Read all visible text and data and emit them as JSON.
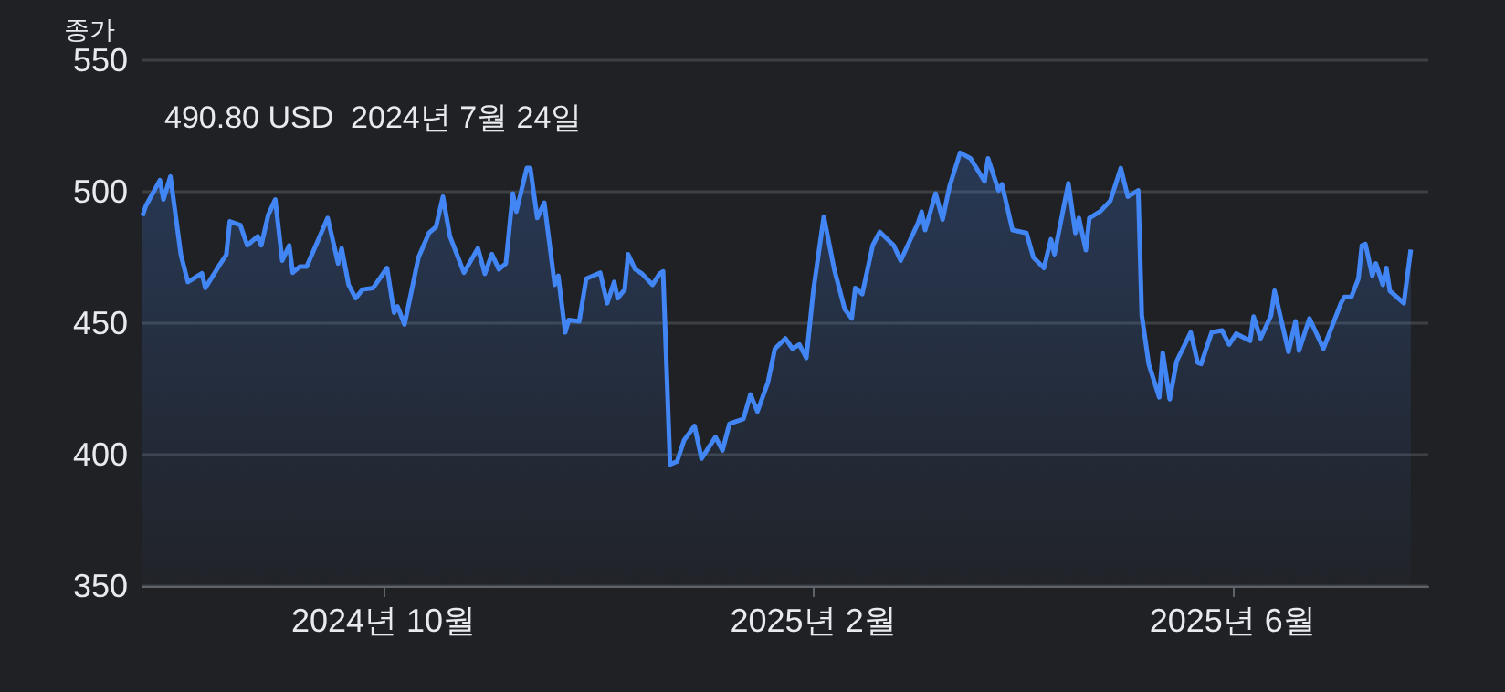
{
  "chart_data": {
    "type": "area",
    "title": "종가",
    "x": [
      "2024-07-24",
      "2024-07-25",
      "2024-07-29",
      "2024-07-30",
      "2024-08-01",
      "2024-08-04",
      "2024-08-06",
      "2024-08-10",
      "2024-08-11",
      "2024-08-15",
      "2024-08-17",
      "2024-08-18",
      "2024-08-21",
      "2024-08-23",
      "2024-08-26",
      "2024-08-27",
      "2024-08-29",
      "2024-08-31",
      "2024-09-02",
      "2024-09-04",
      "2024-09-05",
      "2024-09-07",
      "2024-09-09",
      "2024-09-15",
      "2024-09-18",
      "2024-09-19",
      "2024-09-21",
      "2024-09-23",
      "2024-09-25",
      "2024-09-28",
      "2024-10-02",
      "2024-10-04",
      "2024-10-05",
      "2024-10-07",
      "2024-10-11",
      "2024-10-14",
      "2024-10-16",
      "2024-10-18",
      "2024-10-20",
      "2024-10-24",
      "2024-10-28",
      "2024-10-30",
      "2024-11-01",
      "2024-11-03",
      "2024-11-05",
      "2024-11-07",
      "2024-11-08",
      "2024-11-11",
      "2024-11-12",
      "2024-11-14",
      "2024-11-16",
      "2024-11-19",
      "2024-11-20",
      "2024-11-22",
      "2024-11-23",
      "2024-11-26",
      "2024-11-28",
      "2024-12-02",
      "2024-12-04",
      "2024-12-06",
      "2024-12-07",
      "2024-12-09",
      "2024-12-10",
      "2024-12-12",
      "2024-12-14",
      "2024-12-17",
      "2024-12-19",
      "2024-12-20",
      "2024-12-22",
      "2024-12-24",
      "2024-12-26",
      "2024-12-29",
      "2024-12-31",
      "2025-01-04",
      "2025-01-06",
      "2025-01-08",
      "2025-01-12",
      "2025-01-14",
      "2025-01-16",
      "2025-01-19",
      "2025-01-21",
      "2025-01-24",
      "2025-01-26",
      "2025-01-28",
      "2025-01-30",
      "2025-02-01",
      "2025-02-04",
      "2025-02-07",
      "2025-02-10",
      "2025-02-12",
      "2025-02-13",
      "2025-02-15",
      "2025-02-18",
      "2025-02-20",
      "2025-02-24",
      "2025-02-26",
      "2025-03-03",
      "2025-03-04",
      "2025-03-05",
      "2025-03-08",
      "2025-03-10",
      "2025-03-12",
      "2025-03-15",
      "2025-03-18",
      "2025-03-22",
      "2025-03-23",
      "2025-03-26",
      "2025-03-27",
      "2025-03-30",
      "2025-04-03",
      "2025-04-05",
      "2025-04-08",
      "2025-04-10",
      "2025-04-11",
      "2025-04-15",
      "2025-04-17",
      "2025-04-18",
      "2025-04-20",
      "2025-04-21",
      "2025-04-24",
      "2025-04-27",
      "2025-04-30",
      "2025-05-02",
      "2025-05-05",
      "2025-05-06",
      "2025-05-08",
      "2025-05-11",
      "2025-05-12",
      "2025-05-14",
      "2025-05-16",
      "2025-05-20",
      "2025-05-22",
      "2025-05-23",
      "2025-05-26",
      "2025-05-29",
      "2025-05-31",
      "2025-06-02",
      "2025-06-06",
      "2025-06-07",
      "2025-06-09",
      "2025-06-12",
      "2025-06-13",
      "2025-06-17",
      "2025-06-19",
      "2025-06-20",
      "2025-06-23",
      "2025-06-27",
      "2025-07-02",
      "2025-07-03",
      "2025-07-05",
      "2025-07-07",
      "2025-07-08",
      "2025-07-09",
      "2025-07-11",
      "2025-07-12",
      "2025-07-14",
      "2025-07-15",
      "2025-07-16",
      "2025-07-20",
      "2025-07-22"
    ],
    "series": [
      {
        "color": "#4285f4",
        "values": [
          490.8,
          494.7,
          504.4,
          497,
          505.8,
          476,
          465.7,
          469,
          463.4,
          472,
          476,
          488.7,
          487.3,
          479.6,
          483,
          479.6,
          491.2,
          497,
          473.8,
          479.6,
          469.2,
          471.5,
          471.5,
          490,
          472.7,
          478.5,
          464.6,
          459.5,
          462.8,
          463.4,
          471,
          454,
          456.4,
          449.5,
          475,
          484.3,
          486.6,
          498.1,
          483,
          469.2,
          478.5,
          468.8,
          476.3,
          470.5,
          472.7,
          499.3,
          492.4,
          509,
          509,
          490,
          495.8,
          464.6,
          468,
          446.5,
          451.2,
          450.7,
          466.9,
          469.2,
          457.6,
          465.7,
          459.5,
          462.8,
          476.2,
          470.5,
          468.8,
          464.6,
          468.8,
          469.7,
          396.3,
          397.4,
          405.5,
          410.9,
          398.5,
          406.7,
          401.6,
          411.8,
          413.6,
          422.9,
          416.4,
          427.5,
          440.3,
          444.2,
          440.3,
          441.9,
          436.8,
          462.3,
          490.5,
          470.4,
          455.3,
          451.8,
          463.4,
          461.1,
          479.6,
          484.7,
          479.6,
          473.8,
          488.2,
          492.4,
          485.4,
          499.3,
          489.4,
          502.1,
          514.8,
          512.7,
          503.9,
          512.7,
          500.5,
          502.8,
          485.4,
          484.3,
          475,
          471,
          481.9,
          476.2,
          503.2,
          484.3,
          490,
          477.8,
          490,
          492.4,
          496.5,
          509,
          498.1,
          500.5,
          453,
          434.5,
          421.8,
          438.7,
          421.1,
          435.6,
          446.5,
          435,
          434.5,
          446.5,
          447.2,
          441.9,
          446,
          443.3,
          452.5,
          444.2,
          453,
          462.3,
          439.1,
          450.7,
          439.6,
          451.8,
          440.3,
          457.6,
          460,
          460,
          466.9,
          479.6,
          480.1,
          468,
          472.7,
          464.6,
          471,
          462.3,
          457.6,
          478
        ]
      }
    ],
    "xlim": [
      "2024-07-24",
      "2025-07-27"
    ],
    "xticks": [
      {
        "value": "2024-10-01",
        "label": "2024년 10월"
      },
      {
        "value": "2025-02-01",
        "label": "2025년 2월"
      },
      {
        "value": "2025-06-01",
        "label": "2025년 6월"
      }
    ],
    "ylim": [
      350,
      550
    ],
    "yticks": [
      350,
      400,
      450,
      500,
      550
    ],
    "grid": "y",
    "marker": "none",
    "line_style": "solid",
    "annotations": [
      {
        "text": "490.80 USD  2024년 7월 24일",
        "x": "2024-07-24",
        "y": 490.8
      }
    ]
  }
}
